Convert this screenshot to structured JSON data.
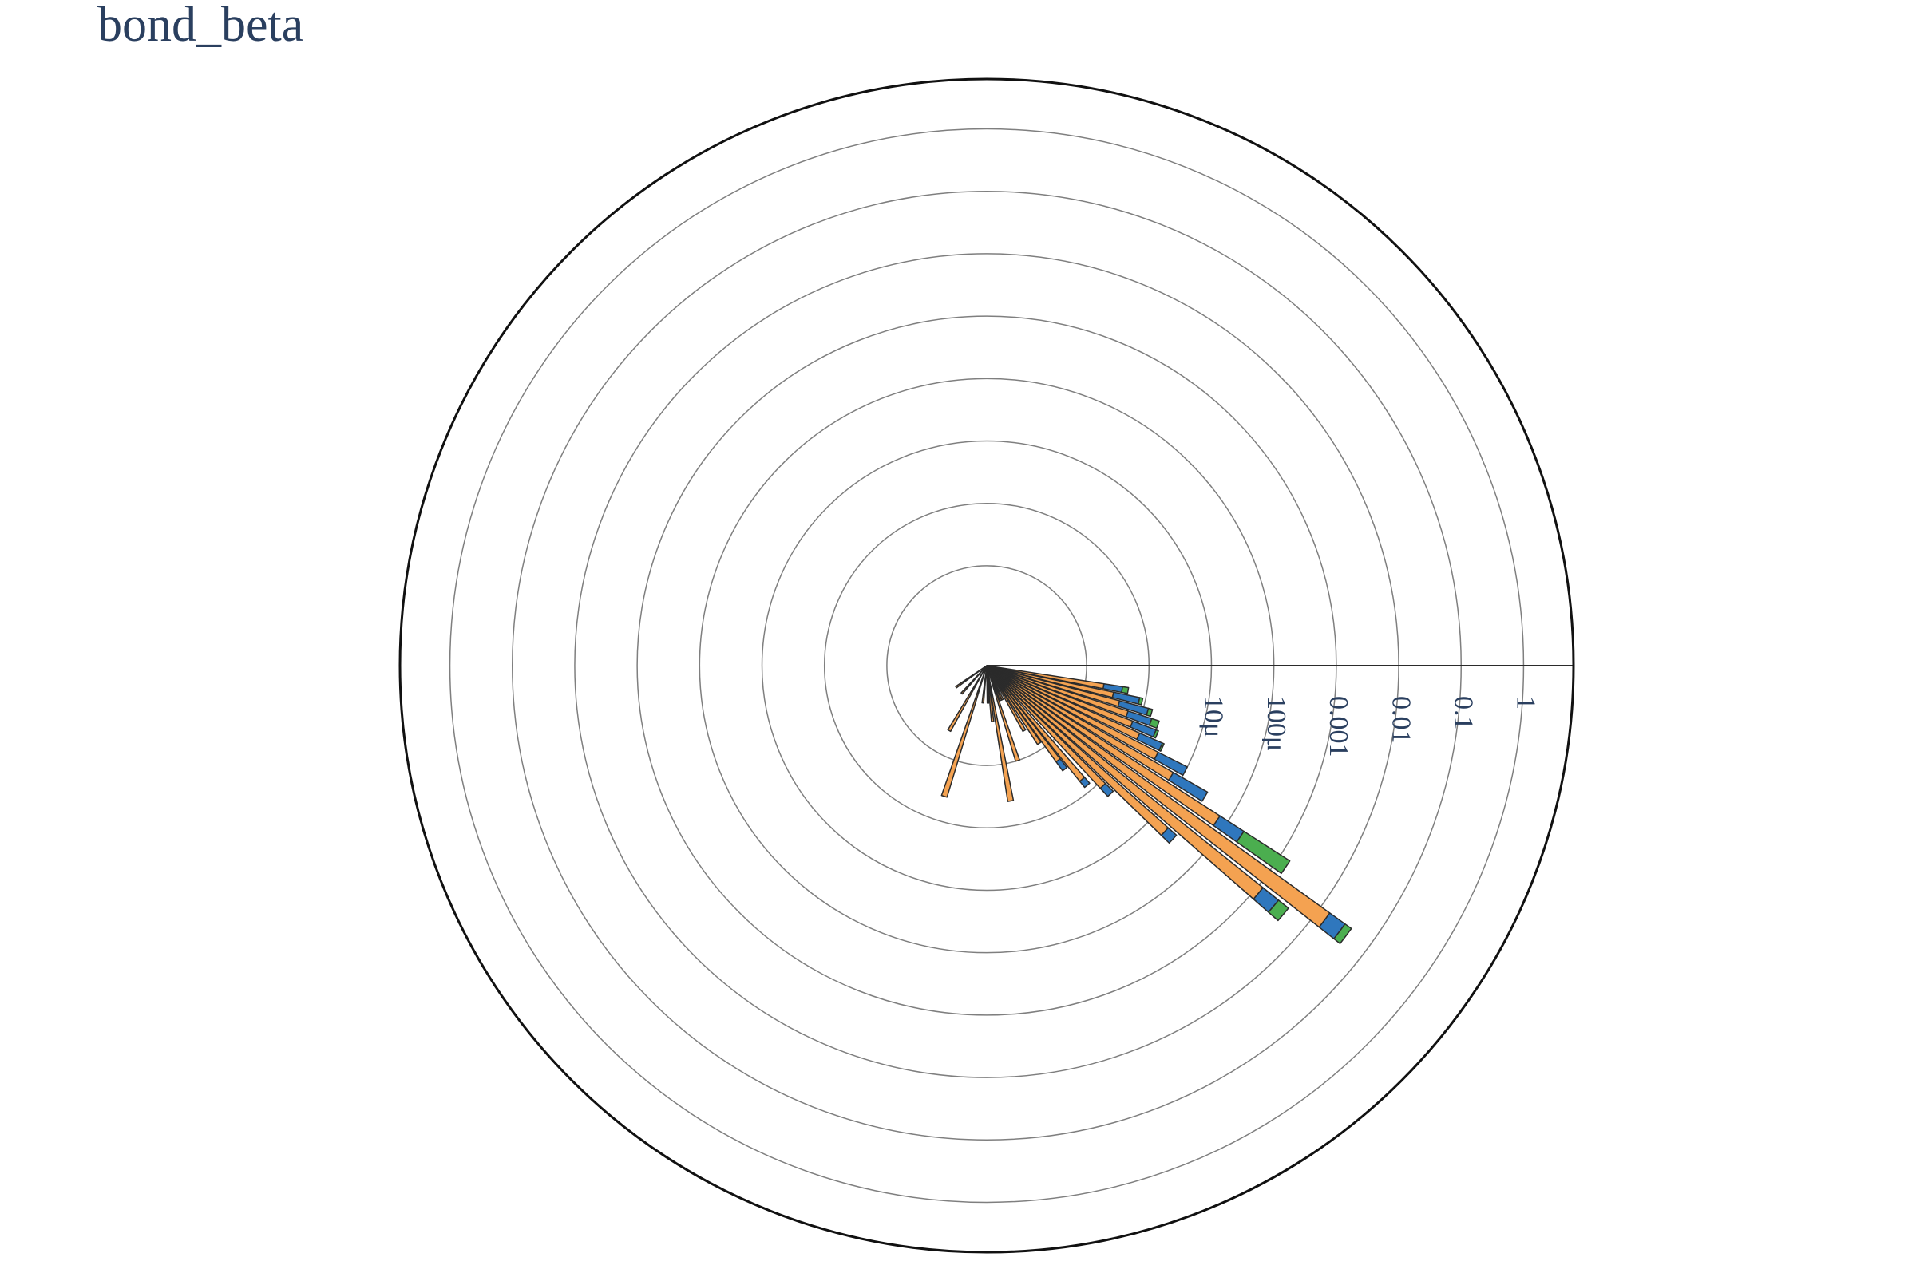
{
  "title": "bond_beta",
  "chart_data": {
    "type": "barpolar",
    "title": "bond_beta",
    "radial_axis": {
      "type": "log",
      "range_log10": [
        -8.6,
        0.8
      ],
      "tick_values": [
        1e-05,
        0.0001,
        0.001,
        0.01,
        0.1,
        1
      ],
      "tick_labels": [
        "10μ",
        "100μ",
        "0.001",
        "0.01",
        "0.1",
        "1"
      ],
      "angle_deg": 0,
      "grid": true
    },
    "angular_axis": {
      "direction": "clockwise",
      "rotation_deg": 0,
      "grid": false
    },
    "barmode": "stack",
    "colors": {
      "orange": "#f4a251",
      "blue": "#2f77bd",
      "green": "#4bae4f",
      "outline": "#2b2b2b",
      "grid": "#7f7f7f"
    },
    "bars": [
      {
        "theta": 10,
        "width": 2.4,
        "cumulative": [
          2e-07,
          4e-07,
          5e-07
        ]
      },
      {
        "theta": 13,
        "width": 2.4,
        "cumulative": [
          3e-07,
          8e-07,
          9e-07
        ]
      },
      {
        "theta": 16,
        "width": 2.4,
        "cumulative": [
          4e-07,
          1.2e-06,
          1.4e-06
        ]
      },
      {
        "theta": 19,
        "width": 2.4,
        "cumulative": [
          6e-07,
          1.5e-06,
          2e-06
        ]
      },
      {
        "theta": 22,
        "width": 2.4,
        "cumulative": [
          8e-07,
          2e-06,
          2.2e-06
        ]
      },
      {
        "theta": 25,
        "width": 2.4,
        "cumulative": [
          1.2e-06,
          3e-06,
          3.2e-06
        ]
      },
      {
        "theta": 28,
        "width": 2.4,
        "cumulative": [
          3e-06,
          1e-05,
          1e-05
        ]
      },
      {
        "theta": 31,
        "width": 2.4,
        "cumulative": [
          7e-06,
          3e-05,
          3e-05
        ]
      },
      {
        "theta": 34,
        "width": 2.4,
        "cumulative": [
          7e-05,
          0.0002,
          0.0015
        ]
      },
      {
        "theta": 37,
        "width": 2.4,
        "cumulative": [
          0.015,
          0.03,
          0.04
        ]
      },
      {
        "theta": 40,
        "width": 2.4,
        "cumulative": [
          0.0012,
          0.0025,
          0.004
        ]
      },
      {
        "theta": 43,
        "width": 2.4,
        "cumulative": [
          2e-05,
          3e-05,
          3e-05
        ]
      },
      {
        "theta": 46,
        "width": 2.4,
        "cumulative": [
          1.2e-06,
          1.8e-06,
          1.8e-06
        ]
      },
      {
        "theta": 50,
        "width": 2.4,
        "cumulative": [
          6e-07,
          8e-07,
          8e-07
        ]
      },
      {
        "theta": 53,
        "width": 2.4,
        "cumulative": [
          2e-07,
          3e-07,
          3e-07
        ]
      },
      {
        "theta": 56,
        "width": 2.4,
        "cumulative": [
          8e-08,
          8e-08,
          8e-08
        ]
      },
      {
        "theta": 60,
        "width": 2.4,
        "cumulative": [
          4e-08,
          4e-08,
          4e-08
        ]
      },
      {
        "theta": 65,
        "width": 2.4,
        "cumulative": [
          1e-08,
          1e-08,
          1e-08
        ]
      },
      {
        "theta": 68,
        "width": 2.4,
        "cumulative": [
          1e-08,
          1e-08,
          1e-08
        ]
      },
      {
        "theta": 72,
        "width": 2.4,
        "cumulative": [
          1e-07,
          1e-07,
          1e-07
        ]
      },
      {
        "theta": 80,
        "width": 2.4,
        "cumulative": [
          4e-07,
          4e-07,
          4e-07
        ]
      },
      {
        "theta": 84,
        "width": 2.4,
        "cumulative": [
          2e-08,
          2e-08,
          2e-08
        ]
      },
      {
        "theta": 88,
        "width": 2.4,
        "cumulative": [
          1e-08,
          1e-08,
          1e-08
        ]
      },
      {
        "theta": 96,
        "width": 2.4,
        "cumulative": [
          1e-08,
          1e-08,
          1e-08
        ]
      },
      {
        "theta": 108,
        "width": 2.4,
        "cumulative": [
          4e-07,
          4e-07,
          4e-07
        ]
      },
      {
        "theta": 120,
        "width": 2.4,
        "cumulative": [
          4e-08,
          4e-08,
          4e-08
        ]
      },
      {
        "theta": 132,
        "width": 2.4,
        "cumulative": [
          1e-08,
          1e-08,
          1e-08
        ]
      },
      {
        "theta": 145,
        "width": 2.4,
        "cumulative": [
          1e-08,
          1e-08,
          1e-08
        ]
      }
    ]
  }
}
